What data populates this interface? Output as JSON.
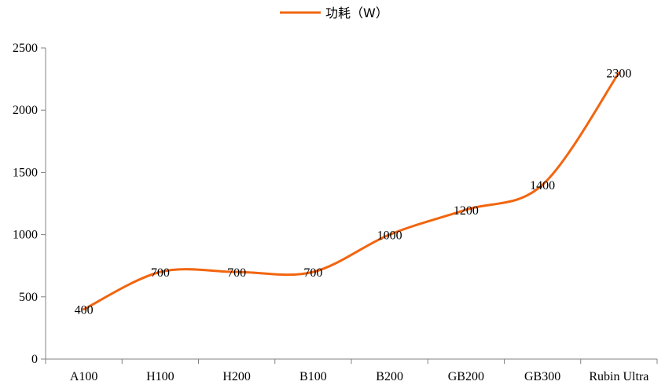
{
  "chart_data": {
    "type": "line",
    "title": "",
    "xlabel": "",
    "ylabel": "",
    "categories": [
      "A100",
      "H100",
      "H200",
      "B100",
      "B200",
      "GB200",
      "GB300",
      "Rubin Ultra"
    ],
    "series": [
      {
        "name": "功耗（W）",
        "values": [
          400,
          700,
          700,
          700,
          1000,
          1200,
          1400,
          2300
        ],
        "color": "#F2650F",
        "smooth": true,
        "data_labels": [
          "400",
          "700",
          "700",
          "700",
          "1000",
          "1200",
          "1400",
          "2300"
        ]
      }
    ],
    "ylim": [
      0,
      2500
    ],
    "yticks": [
      0,
      500,
      1000,
      1500,
      2000,
      2500
    ],
    "ytick_labels": [
      "0",
      "500",
      "1000",
      "1500",
      "2000",
      "2500"
    ],
    "grid": false,
    "legend": "top-center"
  }
}
